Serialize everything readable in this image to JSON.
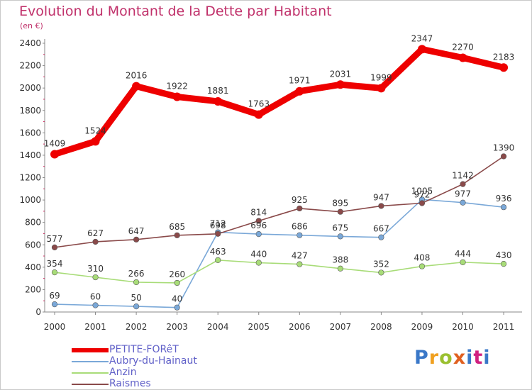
{
  "title": "Evolution du Montant de la Dette par Habitant",
  "subtitle": "(en €)",
  "brand": {
    "text": "Proxiti",
    "colors": [
      "#3a78c8",
      "#f0a020",
      "#9ac030",
      "#e06020",
      "#3a78c8",
      "#d02080",
      "#3a78c8"
    ]
  },
  "chart_data": {
    "type": "line",
    "title": "Evolution du Montant de la Dette par Habitant",
    "subtitle": "(en €)",
    "xlabel": "",
    "ylabel": "",
    "x": [
      "2000",
      "2001",
      "2002",
      "2003",
      "2004",
      "2005",
      "2006",
      "2007",
      "2008",
      "2009",
      "2010",
      "2011"
    ],
    "ylim": [
      0,
      2400
    ],
    "yticks": [
      "0",
      "200",
      "400",
      "600",
      "800",
      "1000",
      "1200",
      "1400",
      "1600",
      "1800",
      "2000",
      "2200",
      "2400"
    ],
    "grid": false,
    "legend_position": "bottom-left",
    "series": [
      {
        "name": "PETITE-FORêT",
        "color": "#ee0000",
        "values": [
          1409,
          1524,
          2016,
          1922,
          1881,
          1763,
          1971,
          2031,
          1999,
          2347,
          2270,
          2183
        ]
      },
      {
        "name": "Aubry-du-Hainaut",
        "color": "#7aa8d8",
        "values": [
          69,
          60,
          50,
          40,
          712,
          696,
          686,
          675,
          667,
          1005,
          977,
          936
        ]
      },
      {
        "name": "Anzin",
        "color": "#a8dc78",
        "values": [
          354,
          310,
          266,
          260,
          463,
          440,
          427,
          388,
          352,
          408,
          444,
          430
        ]
      },
      {
        "name": "Raismes",
        "color": "#8a4a4a",
        "values": [
          577,
          627,
          647,
          685,
          698,
          814,
          925,
          895,
          947,
          972,
          1142,
          1390
        ]
      }
    ],
    "labels": [
      [
        "1409",
        "1524",
        "2016",
        "1922",
        "1881",
        "1763",
        "1971",
        "2031",
        "1999",
        "2347",
        "2270",
        "2183"
      ],
      [
        "69",
        "60",
        "50",
        "40",
        "712",
        "696",
        "686",
        "675",
        "667",
        "1005",
        "977",
        "936"
      ],
      [
        "354",
        "310",
        "266",
        "260",
        "463",
        "440",
        "427",
        "388",
        "352",
        "408",
        "444",
        "430"
      ],
      [
        "577",
        "627",
        "647",
        "685",
        "698",
        "814",
        "925",
        "895",
        "947",
        "972",
        "1142",
        "1390"
      ]
    ]
  }
}
